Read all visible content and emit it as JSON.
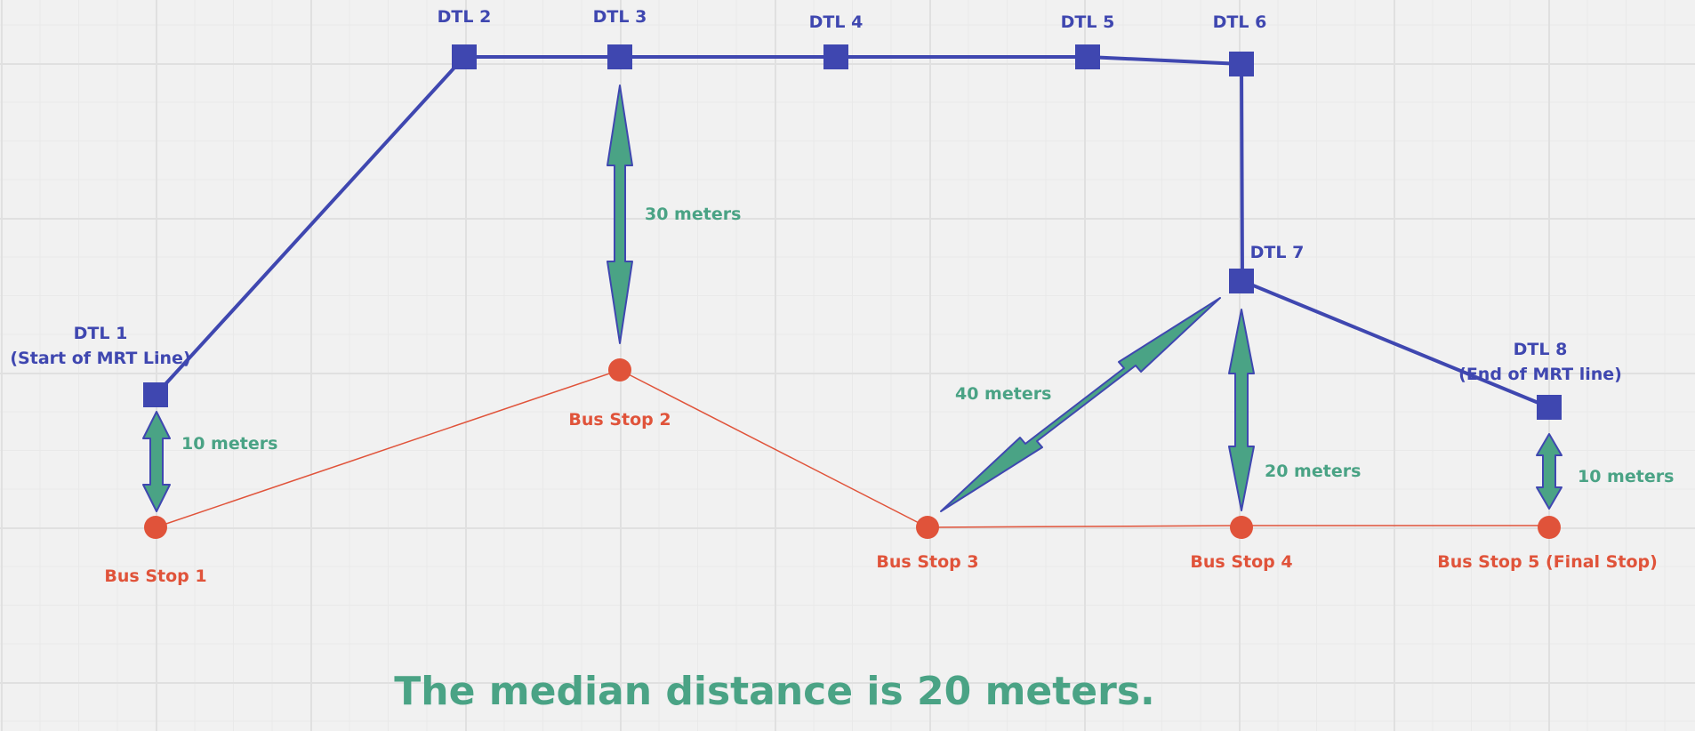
{
  "colors": {
    "mrt": "#3f47b0",
    "bus": "#e0533a",
    "distance": "#4aa385"
  },
  "mrt_stations": [
    {
      "id": "dtl1",
      "name": "DTL 1",
      "sub": "(Start of MRT Line)"
    },
    {
      "id": "dtl2",
      "name": "DTL 2",
      "sub": ""
    },
    {
      "id": "dtl3",
      "name": "DTL 3",
      "sub": ""
    },
    {
      "id": "dtl4",
      "name": "DTL 4",
      "sub": ""
    },
    {
      "id": "dtl5",
      "name": "DTL 5",
      "sub": ""
    },
    {
      "id": "dtl6",
      "name": "DTL 6",
      "sub": ""
    },
    {
      "id": "dtl7",
      "name": "DTL 7",
      "sub": ""
    },
    {
      "id": "dtl8",
      "name": "DTL 8",
      "sub": "(End of MRT line)"
    }
  ],
  "bus_stops": [
    {
      "id": "bus1",
      "name": "Bus Stop 1"
    },
    {
      "id": "bus2",
      "name": "Bus Stop 2"
    },
    {
      "id": "bus3",
      "name": "Bus Stop 3"
    },
    {
      "id": "bus4",
      "name": "Bus Stop 4"
    },
    {
      "id": "bus5",
      "name": "Bus Stop 5 (Final Stop)"
    }
  ],
  "distances": [
    {
      "from": "dtl1",
      "to": "bus1",
      "label": "10 meters"
    },
    {
      "from": "dtl3",
      "to": "bus2",
      "label": "30 meters"
    },
    {
      "from": "dtl7",
      "to": "bus3",
      "label": "40 meters"
    },
    {
      "from": "dtl7",
      "to": "bus4",
      "label": "20 meters"
    },
    {
      "from": "dtl8",
      "to": "bus5",
      "label": "10 meters"
    }
  ],
  "footer": "The median distance is 20 meters."
}
